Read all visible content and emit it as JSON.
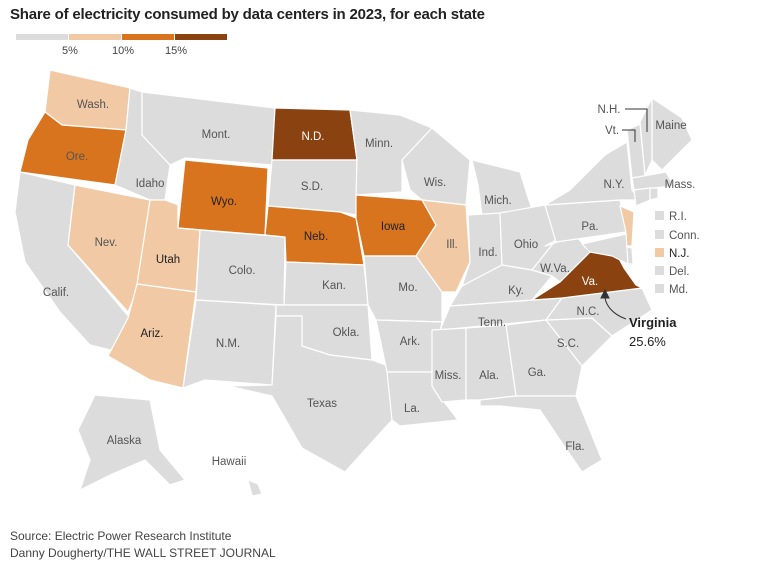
{
  "title": "Share of electricity consumed by data centers in 2023, for each state",
  "legend": {
    "bins": [
      {
        "range": "<5%",
        "color": "#dcdcdc"
      },
      {
        "range": "5-10%",
        "color": "#f1caa5"
      },
      {
        "range": "10-15%",
        "color": "#d9741e"
      },
      {
        "range": ">15%",
        "color": "#8a4210"
      }
    ],
    "ticks": [
      "5%",
      "10%",
      "15%"
    ]
  },
  "states": {
    "WA": {
      "label": "Wash.",
      "bin": 1
    },
    "OR": {
      "label": "Ore.",
      "bin": 2
    },
    "CA": {
      "label": "Calif.",
      "bin": 0
    },
    "NV": {
      "label": "Nev.",
      "bin": 1
    },
    "ID": {
      "label": "Idaho",
      "bin": 0
    },
    "MT": {
      "label": "Mont.",
      "bin": 0
    },
    "WY": {
      "label": "Wyo.",
      "bin": 2
    },
    "UT": {
      "label": "Utah",
      "bin": 1
    },
    "AZ": {
      "label": "Ariz.",
      "bin": 1
    },
    "CO": {
      "label": "Colo.",
      "bin": 0
    },
    "NM": {
      "label": "N.M.",
      "bin": 0
    },
    "ND": {
      "label": "N.D.",
      "bin": 3
    },
    "SD": {
      "label": "S.D.",
      "bin": 0
    },
    "NE": {
      "label": "Neb.",
      "bin": 2
    },
    "KS": {
      "label": "Kan.",
      "bin": 0
    },
    "OK": {
      "label": "Okla.",
      "bin": 0
    },
    "TX": {
      "label": "Texas",
      "bin": 0
    },
    "MN": {
      "label": "Minn.",
      "bin": 0
    },
    "IA": {
      "label": "Iowa",
      "bin": 2
    },
    "MO": {
      "label": "Mo.",
      "bin": 0
    },
    "AR": {
      "label": "Ark.",
      "bin": 0
    },
    "LA": {
      "label": "La.",
      "bin": 0
    },
    "WI": {
      "label": "Wis.",
      "bin": 0
    },
    "IL": {
      "label": "Ill.",
      "bin": 1
    },
    "MI": {
      "label": "Mich.",
      "bin": 0
    },
    "IN": {
      "label": "Ind.",
      "bin": 0
    },
    "OH": {
      "label": "Ohio",
      "bin": 0
    },
    "KY": {
      "label": "Ky.",
      "bin": 0
    },
    "TN": {
      "label": "Tenn.",
      "bin": 0
    },
    "MS": {
      "label": "Miss.",
      "bin": 0
    },
    "AL": {
      "label": "Ala.",
      "bin": 0
    },
    "GA": {
      "label": "Ga.",
      "bin": 0
    },
    "FL": {
      "label": "Fla.",
      "bin": 0
    },
    "SC": {
      "label": "S.C.",
      "bin": 0
    },
    "NC": {
      "label": "N.C.",
      "bin": 0
    },
    "VA": {
      "label": "Va.",
      "bin": 3,
      "value": "25.6%",
      "callout": "Virginia"
    },
    "WV": {
      "label": "W.Va.",
      "bin": 0
    },
    "PA": {
      "label": "Pa.",
      "bin": 0
    },
    "NY": {
      "label": "N.Y.",
      "bin": 0
    },
    "ME": {
      "label": "Maine",
      "bin": 0
    },
    "NH": {
      "label": "N.H.",
      "bin": 0
    },
    "VT": {
      "label": "Vt.",
      "bin": 0
    },
    "MA": {
      "label": "Mass.",
      "bin": 0
    },
    "RI": {
      "label": "R.I.",
      "bin": 0
    },
    "CT": {
      "label": "Conn.",
      "bin": 0
    },
    "NJ": {
      "label": "N.J.",
      "bin": 1
    },
    "DE": {
      "label": "Del.",
      "bin": 0
    },
    "MD": {
      "label": "Md.",
      "bin": 0
    },
    "AK": {
      "label": "Alaska",
      "bin": 0
    },
    "HI": {
      "label": "Hawaii",
      "bin": 0
    }
  },
  "footer": {
    "source": "Source: Electric Power Research Institute",
    "credit": "Danny Dougherty/THE WALL STREET JOURNAL"
  }
}
